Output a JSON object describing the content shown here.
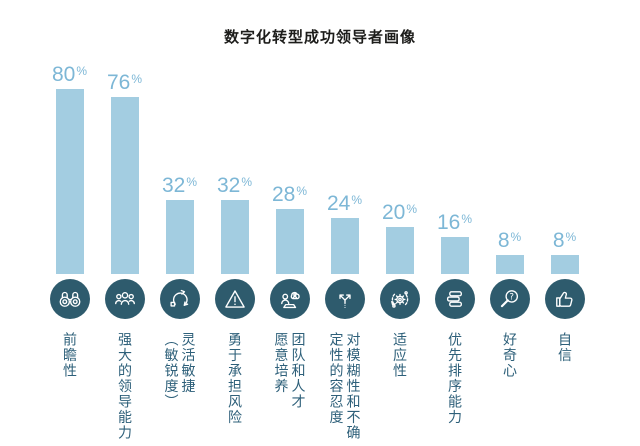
{
  "title": "数字化转型成功领导者画像",
  "colors": {
    "background": "#ffffff",
    "bar": "#a3cde1",
    "percent_text": "#7db7d6",
    "icon_circle": "#2e5b6d",
    "category_text": "#2e607a",
    "title_text": "#1d1d1b"
  },
  "chart_data": {
    "type": "bar",
    "title": "数字化转型成功领导者画像",
    "unit": "%",
    "ylim": [
      0,
      100
    ],
    "grid": false,
    "legend": false,
    "axes_shown": false,
    "value_label_position": "above-bars",
    "category_label_orientation": "vertical",
    "percent_sign": "%",
    "categories": [
      "前瞻性",
      "强大的领导能力",
      "灵活敏捷（敏锐度）",
      "勇于承担风险",
      "团队和人才愿意培养",
      "对模糊性和不确定性的容忍度",
      "适应性",
      "优先排序能力",
      "好奇心",
      "自信"
    ],
    "values": [
      80,
      76,
      32,
      32,
      28,
      24,
      20,
      16,
      8,
      8
    ],
    "items": [
      {
        "value": 80,
        "value_display": "80",
        "label_display": "前瞻性",
        "icon": "binoculars-icon"
      },
      {
        "value": 76,
        "value_display": "76",
        "label_display": "强大的领导能力",
        "icon": "leadership-group-icon"
      },
      {
        "value": 32,
        "value_display": "32",
        "label_display": "灵活敏捷\n（敏锐度）",
        "icon": "agile-cycle-icon"
      },
      {
        "value": 32,
        "value_display": "32",
        "label_display": "勇于承担风险",
        "icon": "risk-triangle-icon"
      },
      {
        "value": 28,
        "value_display": "28",
        "label_display": "团队和人才\n愿意培养",
        "icon": "team-talent-icon"
      },
      {
        "value": 24,
        "value_display": "24",
        "label_display": "对模糊性和不确\n定性的容忍度",
        "icon": "branching-arrows-icon"
      },
      {
        "value": 20,
        "value_display": "20",
        "label_display": "适应性",
        "icon": "adapt-gear-icon"
      },
      {
        "value": 16,
        "value_display": "16",
        "label_display": "优先排序能力",
        "icon": "priority-list-icon"
      },
      {
        "value": 8,
        "value_display": "8",
        "label_display": "好奇心",
        "icon": "curiosity-magnifier-icon"
      },
      {
        "value": 8,
        "value_display": "8",
        "label_display": "自信",
        "icon": "confidence-thumb-icon"
      }
    ]
  }
}
